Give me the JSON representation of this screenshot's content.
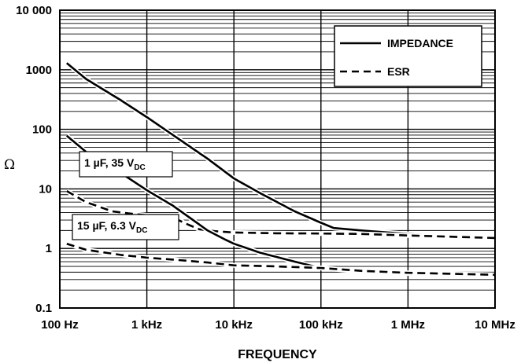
{
  "chart_data": {
    "type": "line",
    "xlabel": "FREQUENCY",
    "ylabel": "Ω",
    "x_scale": "log",
    "y_scale": "log",
    "xlim": [
      100,
      10000000
    ],
    "ylim": [
      0.1,
      10000
    ],
    "grid": true,
    "legend_position": "top-right",
    "x_tick_values": [
      100,
      1000,
      10000,
      100000,
      1000000,
      10000000
    ],
    "x_tick_labels": [
      "100 Hz",
      "1 kHz",
      "10 kHz",
      "100 kHz",
      "1 MHz",
      "10 MHz"
    ],
    "y_tick_values": [
      0.1,
      1,
      10,
      100,
      1000,
      10000
    ],
    "y_tick_labels": [
      "0.1",
      "1",
      "10",
      "100",
      "1000",
      "10 000"
    ],
    "legend": [
      {
        "label": "IMPEDANCE",
        "style": "solid"
      },
      {
        "label": "ESR",
        "style": "dashed"
      }
    ],
    "annotations": [
      {
        "label_main": "1 µF, 35 V",
        "label_sub": "DC"
      },
      {
        "label_main": "15 µF, 6.3 V",
        "label_sub": "DC"
      }
    ],
    "series": [
      {
        "group": "1 µF, 35 V",
        "kind": "IMPEDANCE",
        "style": "solid",
        "points": [
          [
            120,
            1300
          ],
          [
            200,
            700
          ],
          [
            500,
            310
          ],
          [
            1000,
            160
          ],
          [
            2000,
            80
          ],
          [
            5000,
            32
          ],
          [
            10000,
            15
          ],
          [
            20000,
            8.5
          ],
          [
            50000,
            4.2
          ],
          [
            100000,
            2.7
          ],
          [
            140000,
            2.2
          ],
          [
            300000,
            2.0
          ],
          [
            1000000,
            1.75
          ],
          [
            3000000,
            1.6
          ],
          [
            10000000,
            1.45
          ]
        ]
      },
      {
        "group": "1 µF, 35 V",
        "kind": "ESR",
        "style": "dashed",
        "points": [
          [
            120,
            9.2
          ],
          [
            200,
            6.0
          ],
          [
            400,
            4.2
          ],
          [
            700,
            3.8
          ],
          [
            1000,
            3.6
          ],
          [
            2000,
            3.3
          ],
          [
            3000,
            2.5
          ],
          [
            4000,
            2.1
          ],
          [
            6000,
            1.95
          ],
          [
            10000,
            1.85
          ],
          [
            30000,
            1.8
          ],
          [
            100000,
            1.78
          ],
          [
            300000,
            1.75
          ],
          [
            1000000,
            1.65
          ],
          [
            10000000,
            1.5
          ]
        ]
      },
      {
        "group": "15 µF, 6.3 V",
        "kind": "IMPEDANCE",
        "style": "solid",
        "points": [
          [
            120,
            78
          ],
          [
            200,
            42
          ],
          [
            500,
            18.5
          ],
          [
            1000,
            9.5
          ],
          [
            2000,
            5.2
          ],
          [
            5000,
            2.0
          ],
          [
            8000,
            1.4
          ],
          [
            10000,
            1.2
          ],
          [
            20000,
            0.85
          ],
          [
            50000,
            0.6
          ],
          [
            100000,
            0.47
          ],
          [
            200000,
            0.43
          ],
          [
            1000000,
            0.38
          ],
          [
            10000000,
            0.35
          ]
        ]
      },
      {
        "group": "15 µF, 6.3 V",
        "kind": "ESR",
        "style": "dashed",
        "points": [
          [
            120,
            1.2
          ],
          [
            200,
            0.95
          ],
          [
            500,
            0.78
          ],
          [
            1000,
            0.7
          ],
          [
            2000,
            0.65
          ],
          [
            5000,
            0.58
          ],
          [
            10000,
            0.52
          ],
          [
            30000,
            0.5
          ],
          [
            100000,
            0.47
          ],
          [
            300000,
            0.42
          ],
          [
            1000000,
            0.39
          ],
          [
            10000000,
            0.36
          ]
        ]
      }
    ]
  }
}
